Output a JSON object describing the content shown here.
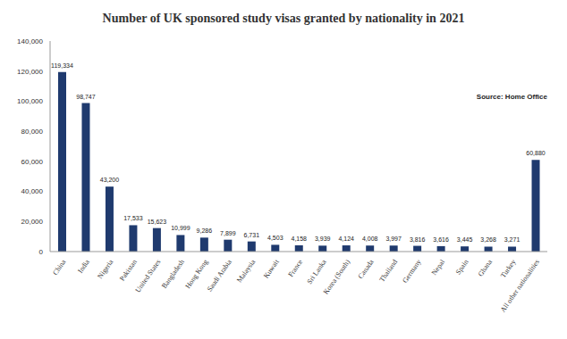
{
  "chart_data": {
    "type": "bar",
    "title": "Number of UK sponsored study visas granted by nationality in 2021",
    "annotation": "Source: Home Office",
    "categories": [
      "China",
      "India",
      "Nigeria",
      "Pakistan",
      "United States",
      "Bangladesh",
      "Hong Kong",
      "Saudi Arabia",
      "Malaysia",
      "Kuwait",
      "France",
      "Sri Lanka",
      "Korea (South)",
      "Canada",
      "Thailand",
      "Germany",
      "Nepal",
      "Spain",
      "Ghana",
      "Turkey",
      "All other nationalities"
    ],
    "values": [
      119334,
      98747,
      43200,
      17533,
      15623,
      10999,
      9286,
      7899,
      6731,
      4503,
      4158,
      3939,
      4124,
      4008,
      3997,
      3816,
      3616,
      3445,
      3268,
      3271,
      60880
    ],
    "value_labels": [
      "119,334",
      "98,747",
      "43,200",
      "17,533",
      "15,623",
      "10,999",
      "9,286",
      "7,899",
      "6,731",
      "4,503",
      "4,158",
      "3,939",
      "4,124",
      "4,008",
      "3,997",
      "3,816",
      "3,616",
      "3,445",
      "3,268",
      "3,271",
      "60,880"
    ],
    "color": "#1f3a6e",
    "ylim": [
      0,
      140000
    ],
    "yticks": [
      0,
      {
        "value": 20000,
        "label": "20,000"
      },
      {
        "value": 40000,
        "label": "40,000"
      },
      {
        "value": 60000,
        "label": "60,000"
      },
      {
        "value": 80000,
        "label": "80,000"
      },
      {
        "value": 100000,
        "label": "100,000"
      },
      {
        "value": 120000,
        "label": "120,000"
      },
      {
        "value": 140000,
        "label": "140,000"
      }
    ],
    "grid": false,
    "data_labels": true
  }
}
